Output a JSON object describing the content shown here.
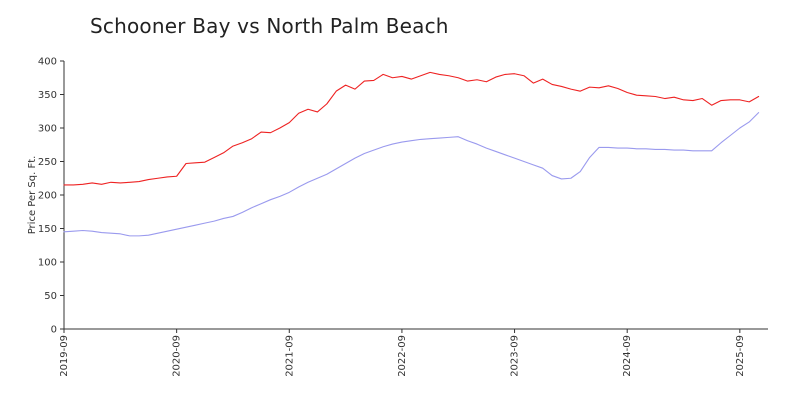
{
  "chart_data": {
    "type": "line",
    "title": "Schooner Bay vs North Palm Beach",
    "xlabel": "",
    "ylabel": "Price Per Sq. Ft.",
    "ylim": [
      0,
      400
    ],
    "yticks": [
      0,
      50,
      100,
      150,
      200,
      250,
      300,
      350,
      400
    ],
    "xlim": [
      "2019-09",
      "2025-12"
    ],
    "xticks": [
      "2019-09",
      "2020-09",
      "2021-09",
      "2022-09",
      "2023-09",
      "2024-09",
      "2025-09"
    ],
    "grid": false,
    "legend": "none",
    "series": [
      {
        "color": "#ee2222",
        "points": [
          [
            "2019-09",
            215
          ],
          [
            "2019-10",
            215
          ],
          [
            "2019-11",
            216
          ],
          [
            "2019-12",
            218
          ],
          [
            "2020-01",
            216
          ],
          [
            "2020-02",
            219
          ],
          [
            "2020-03",
            218
          ],
          [
            "2020-04",
            219
          ],
          [
            "2020-05",
            220
          ],
          [
            "2020-06",
            223
          ],
          [
            "2020-07",
            225
          ],
          [
            "2020-08",
            227
          ],
          [
            "2020-09",
            228
          ],
          [
            "2020-10",
            247
          ],
          [
            "2020-11",
            248
          ],
          [
            "2020-12",
            249
          ],
          [
            "2021-01",
            256
          ],
          [
            "2021-02",
            263
          ],
          [
            "2021-03",
            273
          ],
          [
            "2021-04",
            278
          ],
          [
            "2021-05",
            284
          ],
          [
            "2021-06",
            294
          ],
          [
            "2021-07",
            293
          ],
          [
            "2021-08",
            300
          ],
          [
            "2021-09",
            308
          ],
          [
            "2021-10",
            322
          ],
          [
            "2021-11",
            328
          ],
          [
            "2021-12",
            324
          ],
          [
            "2022-01",
            336
          ],
          [
            "2022-02",
            355
          ],
          [
            "2022-03",
            364
          ],
          [
            "2022-04",
            358
          ],
          [
            "2022-05",
            370
          ],
          [
            "2022-06",
            371
          ],
          [
            "2022-07",
            380
          ],
          [
            "2022-08",
            375
          ],
          [
            "2022-09",
            377
          ],
          [
            "2022-10",
            373
          ],
          [
            "2022-11",
            378
          ],
          [
            "2022-12",
            383
          ],
          [
            "2023-01",
            380
          ],
          [
            "2023-02",
            378
          ],
          [
            "2023-03",
            375
          ],
          [
            "2023-04",
            370
          ],
          [
            "2023-05",
            372
          ],
          [
            "2023-06",
            369
          ],
          [
            "2023-07",
            376
          ],
          [
            "2023-08",
            380
          ],
          [
            "2023-09",
            381
          ],
          [
            "2023-10",
            378
          ],
          [
            "2023-11",
            367
          ],
          [
            "2023-12",
            373
          ],
          [
            "2024-01",
            365
          ],
          [
            "2024-02",
            362
          ],
          [
            "2024-03",
            358
          ],
          [
            "2024-04",
            355
          ],
          [
            "2024-05",
            361
          ],
          [
            "2024-06",
            360
          ],
          [
            "2024-07",
            363
          ],
          [
            "2024-08",
            359
          ],
          [
            "2024-09",
            353
          ],
          [
            "2024-10",
            349
          ],
          [
            "2024-11",
            348
          ],
          [
            "2024-12",
            347
          ],
          [
            "2025-01",
            344
          ],
          [
            "2025-02",
            346
          ],
          [
            "2025-03",
            342
          ],
          [
            "2025-04",
            341
          ],
          [
            "2025-05",
            344
          ],
          [
            "2025-06",
            334
          ],
          [
            "2025-07",
            341
          ],
          [
            "2025-08",
            342
          ],
          [
            "2025-09",
            342
          ],
          [
            "2025-10",
            339
          ],
          [
            "2025-11",
            347
          ]
        ]
      },
      {
        "color": "#9a9aee",
        "points": [
          [
            "2019-09",
            145
          ],
          [
            "2019-10",
            146
          ],
          [
            "2019-11",
            147
          ],
          [
            "2019-12",
            146
          ],
          [
            "2020-01",
            144
          ],
          [
            "2020-02",
            143
          ],
          [
            "2020-03",
            142
          ],
          [
            "2020-04",
            139
          ],
          [
            "2020-05",
            139
          ],
          [
            "2020-06",
            140
          ],
          [
            "2020-07",
            143
          ],
          [
            "2020-08",
            146
          ],
          [
            "2020-09",
            149
          ],
          [
            "2020-10",
            152
          ],
          [
            "2020-11",
            155
          ],
          [
            "2020-12",
            158
          ],
          [
            "2021-01",
            161
          ],
          [
            "2021-02",
            165
          ],
          [
            "2021-03",
            168
          ],
          [
            "2021-04",
            174
          ],
          [
            "2021-05",
            181
          ],
          [
            "2021-06",
            187
          ],
          [
            "2021-07",
            193
          ],
          [
            "2021-08",
            198
          ],
          [
            "2021-09",
            204
          ],
          [
            "2021-10",
            212
          ],
          [
            "2021-11",
            219
          ],
          [
            "2021-12",
            225
          ],
          [
            "2022-01",
            231
          ],
          [
            "2022-02",
            239
          ],
          [
            "2022-03",
            247
          ],
          [
            "2022-04",
            255
          ],
          [
            "2022-05",
            262
          ],
          [
            "2022-06",
            267
          ],
          [
            "2022-07",
            272
          ],
          [
            "2022-08",
            276
          ],
          [
            "2022-09",
            279
          ],
          [
            "2022-10",
            281
          ],
          [
            "2022-11",
            283
          ],
          [
            "2022-12",
            284
          ],
          [
            "2023-01",
            285
          ],
          [
            "2023-02",
            286
          ],
          [
            "2023-03",
            287
          ],
          [
            "2023-04",
            281
          ],
          [
            "2023-05",
            276
          ],
          [
            "2023-06",
            270
          ],
          [
            "2023-07",
            265
          ],
          [
            "2023-08",
            260
          ],
          [
            "2023-09",
            255
          ],
          [
            "2023-10",
            250
          ],
          [
            "2023-11",
            245
          ],
          [
            "2023-12",
            240
          ],
          [
            "2024-01",
            229
          ],
          [
            "2024-02",
            224
          ],
          [
            "2024-03",
            225
          ],
          [
            "2024-04",
            235
          ],
          [
            "2024-05",
            256
          ],
          [
            "2024-06",
            271
          ],
          [
            "2024-07",
            271
          ],
          [
            "2024-08",
            270
          ],
          [
            "2024-09",
            270
          ],
          [
            "2024-10",
            269
          ],
          [
            "2024-11",
            269
          ],
          [
            "2024-12",
            268
          ],
          [
            "2025-01",
            268
          ],
          [
            "2025-02",
            267
          ],
          [
            "2025-03",
            267
          ],
          [
            "2025-04",
            266
          ],
          [
            "2025-05",
            266
          ],
          [
            "2025-06",
            266
          ],
          [
            "2025-07",
            278
          ],
          [
            "2025-08",
            289
          ],
          [
            "2025-09",
            300
          ],
          [
            "2025-10",
            309
          ],
          [
            "2025-11",
            323
          ]
        ]
      }
    ]
  }
}
